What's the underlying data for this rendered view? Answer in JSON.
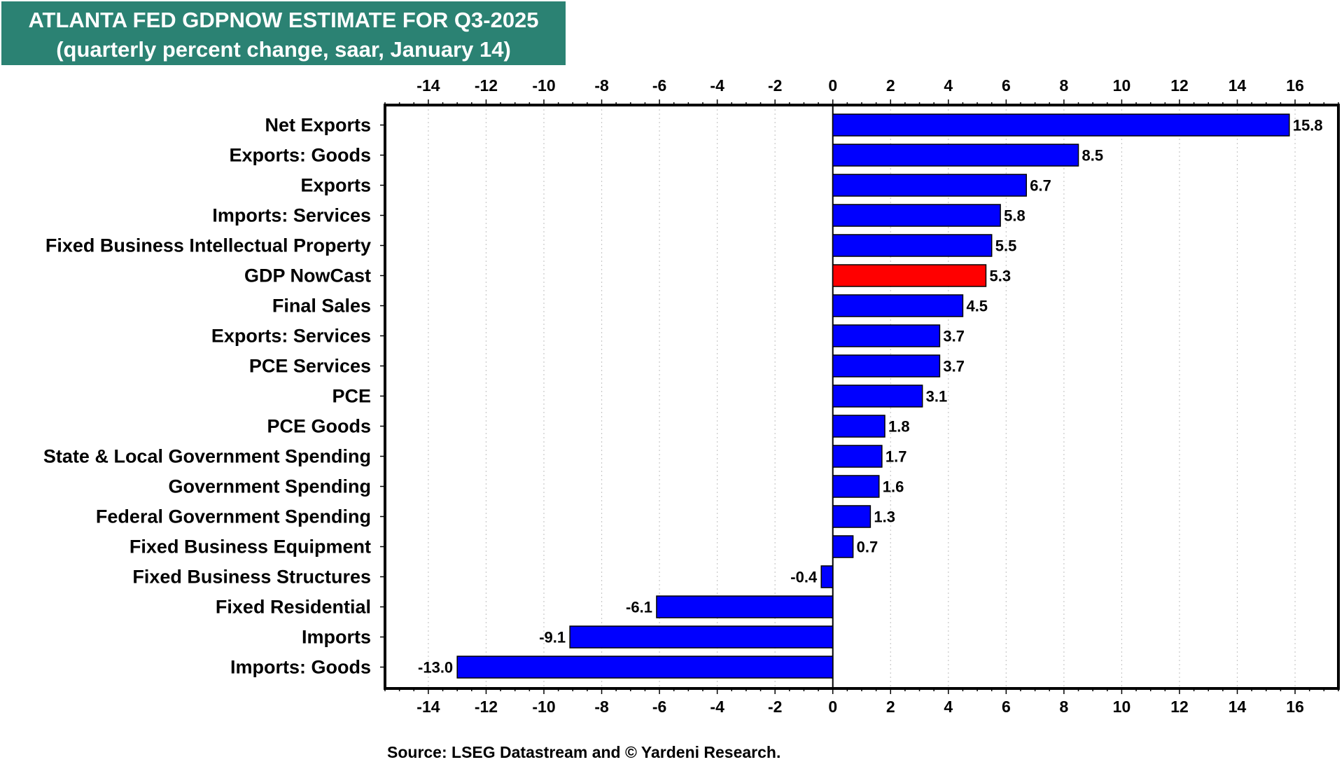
{
  "title": "ATLANTA FED GDPNOW ESTIMATE FOR Q3-2025",
  "subtitle": "(quarterly percent change, saar, January 14)",
  "source": "Source: LSEG Datastream and © Yardeni Research.",
  "colors": {
    "title_bg": "#2b8273",
    "bar_default": "#0000ff",
    "bar_highlight": "#ff0000"
  },
  "chart_data": {
    "type": "bar",
    "orientation": "horizontal",
    "title": "ATLANTA FED GDPNOW ESTIMATE FOR Q3-2025",
    "subtitle": "(quarterly percent change, saar, January 14)",
    "xlim": [
      -15.5,
      17.5
    ],
    "x_ticks": [
      -14,
      -12,
      -10,
      -8,
      -6,
      -4,
      -2,
      0,
      2,
      4,
      6,
      8,
      10,
      12,
      14,
      16
    ],
    "tick_labels_position": "top and bottom",
    "grid": "vertical dotted",
    "legend": "none",
    "categories": [
      "Net Exports",
      "Exports: Goods",
      "Exports",
      "Imports: Services",
      "Fixed Business Intellectual Property",
      "GDP NowCast",
      "Final Sales",
      "Exports: Services",
      "PCE Services",
      "PCE",
      "PCE Goods",
      "State & Local Government Spending",
      "Government Spending",
      "Federal Government Spending",
      "Fixed Business Equipment",
      "Fixed Business Structures",
      "Fixed Residential",
      "Imports",
      "Imports: Goods"
    ],
    "values": [
      15.8,
      8.5,
      6.7,
      5.8,
      5.5,
      5.3,
      4.5,
      3.7,
      3.7,
      3.1,
      1.8,
      1.7,
      1.6,
      1.3,
      0.7,
      -0.4,
      -6.1,
      -9.1,
      -13.0
    ],
    "value_labels": [
      "15.8",
      "8.5",
      "6.7",
      "5.8",
      "5.5",
      "5.3",
      "4.5",
      "3.7",
      "3.7",
      "3.1",
      "1.8",
      "1.7",
      "1.6",
      "1.3",
      "0.7",
      "-0.4",
      "-6.1",
      "-9.1",
      "-13.0"
    ],
    "highlight_category": "GDP NowCast"
  }
}
